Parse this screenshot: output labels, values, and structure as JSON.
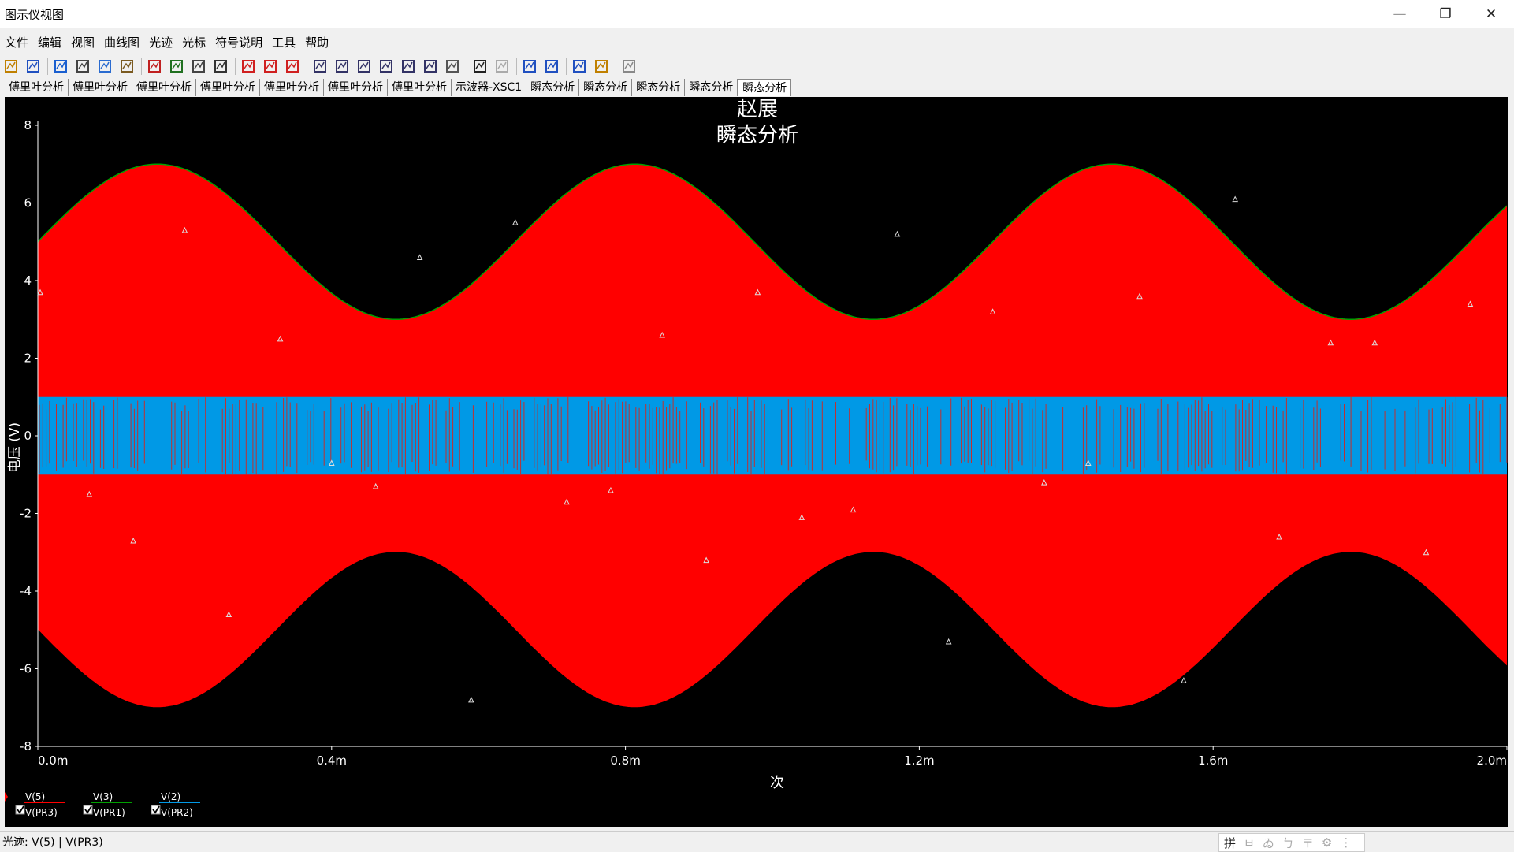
{
  "window": {
    "title": "图示仪视图",
    "minimize_glyph": "—",
    "restore_glyph": "❐",
    "close_glyph": "✕"
  },
  "menu": [
    "文件",
    "编辑",
    "视图",
    "曲线图",
    "光迹",
    "光标",
    "符号说明",
    "工具",
    "帮助"
  ],
  "toolbar_icons": [
    "open-icon",
    "save-icon",
    "undo-icon",
    "cut-icon",
    "copy-icon",
    "paste-icon",
    "grid-icon",
    "legend-icon",
    "histogram-icon",
    "overlay-icon",
    "line-trace-icon",
    "points-icon",
    "line-points-icon",
    "zoom-in-icon",
    "zoom-out-icon",
    "zoom-area-icon",
    "zoom-x-icon",
    "zoom-y-icon",
    "zoom-full-icon",
    "pan-icon",
    "text-icon",
    "label-icon",
    "cursor-trace-icon",
    "export-icon",
    "copy-graph-icon",
    "paste-graph-icon",
    "stop-icon"
  ],
  "tabs": [
    "傅里叶分析",
    "傅里叶分析",
    "傅里叶分析",
    "傅里叶分析",
    "傅里叶分析",
    "傅里叶分析",
    "傅里叶分析",
    "示波器-XSC1",
    "瞬态分析",
    "瞬态分析",
    "瞬态分析",
    "瞬态分析",
    "瞬态分析"
  ],
  "active_tab": 12,
  "status": {
    "text": "光迹: V(5) | V(PR3)",
    "ime": [
      "拼",
      "ㅂ",
      "ゐ",
      "ㄅ",
      "〒",
      "⚙",
      "⋮"
    ]
  },
  "colors": {
    "plot_bg": "#000000",
    "red": "#ff0000",
    "green": "#00a000",
    "blue": "#0099e6",
    "axis": "#ffffff"
  },
  "chart_data": {
    "type": "line",
    "title": "赵展",
    "subtitle": "瞬态分析",
    "xlabel": "次",
    "ylabel": "电压 (V)",
    "xlim": [
      0,
      0.002
    ],
    "ylim": [
      -8,
      8
    ],
    "xticks": [
      0,
      0.0004,
      0.0008,
      0.0012,
      0.0016,
      0.002
    ],
    "xtick_labels": [
      "0.0m",
      "0.4m",
      "0.8m",
      "1.2m",
      "1.6m",
      "2.0m"
    ],
    "yticks": [
      8,
      6,
      4,
      2,
      0,
      -2,
      -4,
      -6,
      -8
    ],
    "grid": false,
    "series": [
      {
        "name": "V(5)",
        "probe": "V(PR3)",
        "color": "#ff0000",
        "kind": "envelope",
        "offset": 5,
        "amplitude": 2,
        "period": 0.00065,
        "description_values": {
          "max": 7,
          "min": 3
        }
      },
      {
        "name": "V(3)",
        "probe": "V(PR1)",
        "color": "#00a000",
        "kind": "sine",
        "offset": 5,
        "amplitude": 2,
        "period": 0.00065
      },
      {
        "name": "V(2)",
        "probe": "V(PR2)",
        "color": "#0099e6",
        "kind": "band",
        "max": 1,
        "min": -1
      }
    ],
    "markers_x": [
      0.0,
      7e-05,
      0.00013,
      0.0002,
      0.00026,
      0.00033,
      0.0004,
      0.00046,
      0.00052,
      0.00059,
      0.00065,
      0.00072,
      0.00078,
      0.00085,
      0.00091,
      0.00098,
      0.00104,
      0.00111,
      0.00117,
      0.00124,
      0.0013,
      0.00137,
      0.00143,
      0.0015,
      0.00156,
      0.00163,
      0.00169,
      0.00176,
      0.00182,
      0.00189,
      0.00195
    ],
    "markers_y": [
      3.7,
      -1.5,
      -2.7,
      5.3,
      -4.6,
      2.5,
      -0.7,
      -1.3,
      4.6,
      -6.8,
      5.5,
      -1.7,
      -1.4,
      2.6,
      -3.2,
      3.7,
      -2.1,
      -1.9,
      5.2,
      -5.3,
      3.2,
      -1.2,
      -0.7,
      3.6,
      -6.3,
      6.1,
      -2.6,
      2.4,
      2.4,
      -3.0,
      3.4
    ],
    "legend": [
      {
        "name": "V(5)",
        "probe": "V(PR3)",
        "color": "#ff0000"
      },
      {
        "name": "V(3)",
        "probe": "V(PR1)",
        "color": "#00a000"
      },
      {
        "name": "V(2)",
        "probe": "V(PR2)",
        "color": "#0099e6"
      }
    ]
  }
}
